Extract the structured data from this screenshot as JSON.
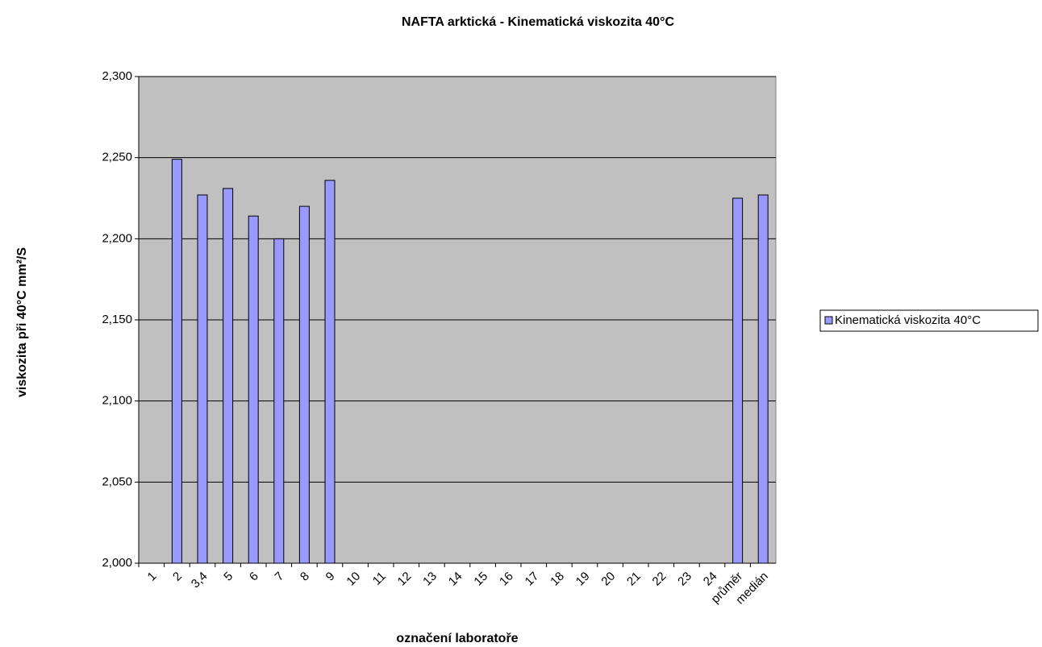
{
  "chart_data": {
    "type": "bar",
    "title": "NAFTA arktická - Kinematická viskozita 40°C",
    "x_label": "označení laboratoře",
    "y_label": "viskozita při 40°C mm²/S",
    "categories": [
      "1",
      "2",
      "3,4",
      "5",
      "6",
      "7",
      "8",
      "9",
      "10",
      "11",
      "12",
      "13",
      "14",
      "15",
      "16",
      "17",
      "18",
      "19",
      "20",
      "21",
      "22",
      "23",
      "24",
      "průměr",
      "medián"
    ],
    "series": [
      {
        "name": "Kinematická viskozita 40°C",
        "color": "#9999ff",
        "values": [
          null,
          2.249,
          2.227,
          2.231,
          2.214,
          2.2,
          2.22,
          2.236,
          null,
          null,
          null,
          null,
          null,
          null,
          null,
          null,
          null,
          null,
          null,
          null,
          null,
          null,
          null,
          2.225,
          2.227
        ]
      }
    ],
    "ylim": [
      2.0,
      2.3
    ],
    "yticks": [
      {
        "value": 2.0,
        "label": "2,000"
      },
      {
        "value": 2.05,
        "label": "2,050"
      },
      {
        "value": 2.1,
        "label": "2,100"
      },
      {
        "value": 2.15,
        "label": "2,150"
      },
      {
        "value": 2.2,
        "label": "2,200"
      },
      {
        "value": 2.25,
        "label": "2,250"
      },
      {
        "value": 2.3,
        "label": "2,300"
      }
    ],
    "grid": true,
    "legend": "right"
  }
}
